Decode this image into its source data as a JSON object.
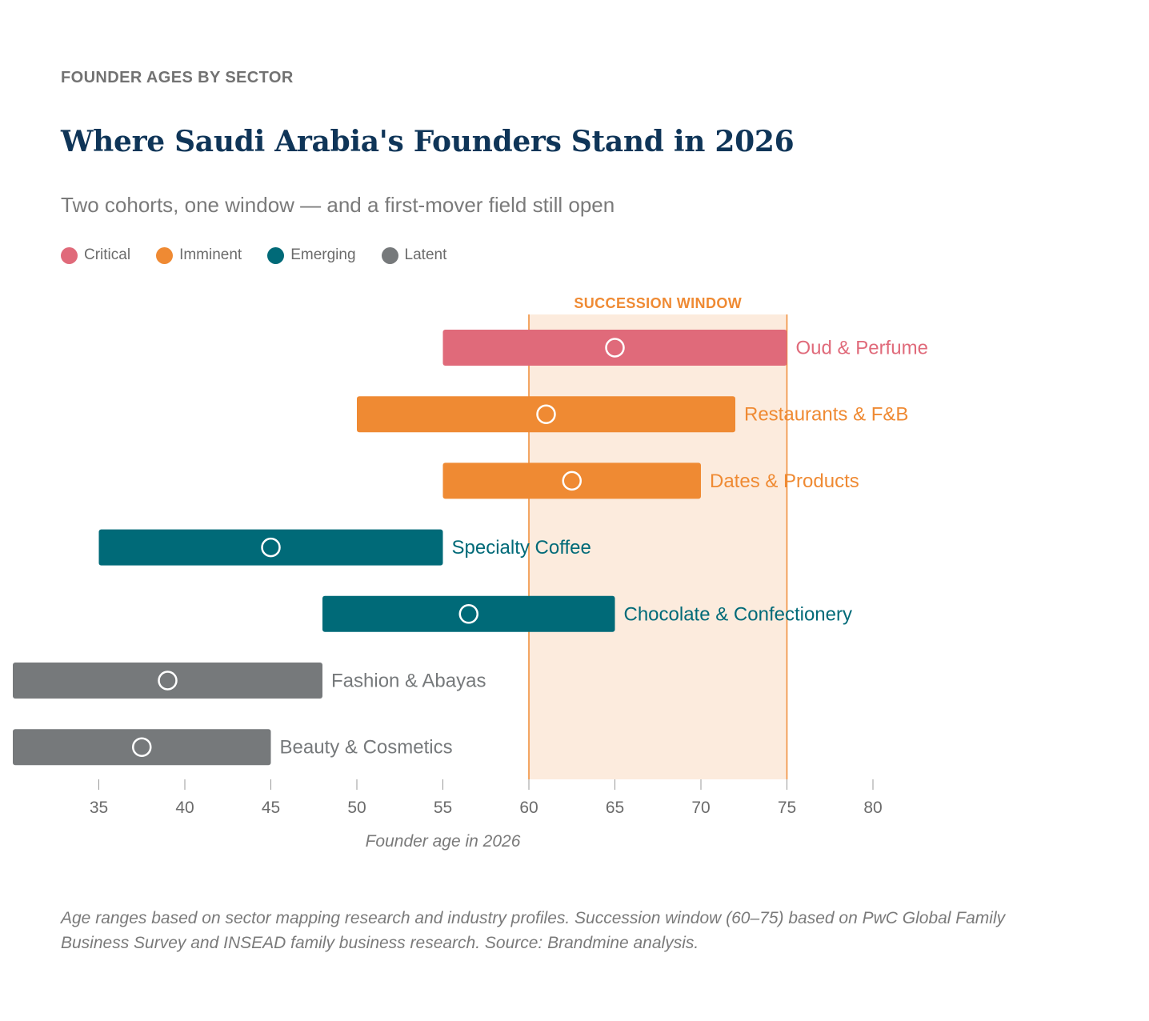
{
  "header": {
    "kicker": "FOUNDER AGES BY SECTOR",
    "title": "Where Saudi Arabia's Founders Stand in 2026",
    "subtitle": "Two cohorts, one window — and a first-mover field still open"
  },
  "legend": [
    {
      "label": "Critical",
      "color": "#e06a7a"
    },
    {
      "label": "Imminent",
      "color": "#ef8a33"
    },
    {
      "label": "Emerging",
      "color": "#006a78"
    },
    {
      "label": "Latent",
      "color": "#76797b"
    }
  ],
  "chart_data": {
    "type": "range-bar",
    "xlabel": "Founder age in 2026",
    "xlim": [
      30,
      80
    ],
    "xticks": [
      35,
      40,
      45,
      50,
      55,
      60,
      65,
      70,
      75,
      80
    ],
    "window": {
      "label": "SUCCESSION WINDOW",
      "start": 60,
      "end": 75
    },
    "rows": [
      {
        "label": "Oud & Perfume",
        "min": 55,
        "max": 75,
        "marker": 65,
        "category": "Critical"
      },
      {
        "label": "Restaurants & F&B",
        "min": 50,
        "max": 72,
        "marker": 61,
        "category": "Imminent"
      },
      {
        "label": "Dates & Products",
        "min": 55,
        "max": 70,
        "marker": 62.5,
        "category": "Imminent"
      },
      {
        "label": "Specialty Coffee",
        "min": 35,
        "max": 55,
        "marker": 45,
        "category": "Emerging"
      },
      {
        "label": "Chocolate & Confectionery",
        "min": 48,
        "max": 65,
        "marker": 56.5,
        "category": "Emerging"
      },
      {
        "label": "Fashion & Abayas",
        "min": 30,
        "max": 48,
        "marker": 39,
        "category": "Latent"
      },
      {
        "label": "Beauty & Cosmetics",
        "min": 30,
        "max": 45,
        "marker": 37.5,
        "category": "Latent"
      }
    ]
  },
  "footnote": "Age ranges based on sector mapping research and industry profiles. Succession window (60–75) based on PwC Global Family Business Survey and INSEAD family business research. Source: Brandmine analysis."
}
